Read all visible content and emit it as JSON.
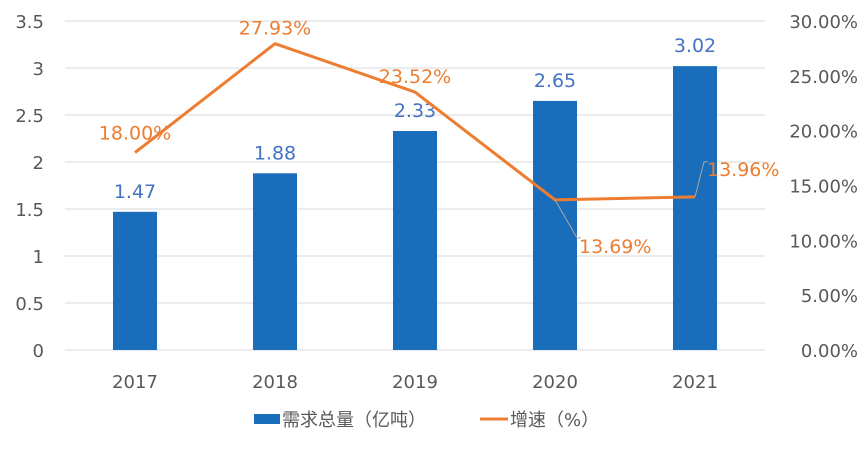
{
  "chart_data": {
    "type": "bar+line",
    "categories": [
      "2017",
      "2018",
      "2019",
      "2020",
      "2021"
    ],
    "series": [
      {
        "name": "需求总量（亿吨）",
        "type": "bar",
        "axis": "left",
        "values": [
          1.47,
          1.88,
          2.33,
          2.65,
          3.02
        ],
        "labels": [
          "1.47",
          "1.88",
          "2.33",
          "2.65",
          "3.02"
        ],
        "color": "#1a6dbb",
        "label_color": "#4472c4"
      },
      {
        "name": "增速（%）",
        "type": "line",
        "axis": "right",
        "values": [
          18.0,
          27.93,
          23.52,
          13.69,
          13.96
        ],
        "labels": [
          "18.00%",
          "27.93%",
          "23.52%",
          "13.69%",
          "13.96%"
        ],
        "color": "#ed7d31"
      }
    ],
    "left_axis": {
      "ylim": [
        0,
        3.5
      ],
      "ticks": [
        "0",
        "0.5",
        "1",
        "1.5",
        "2",
        "2.5",
        "3",
        "3.5"
      ]
    },
    "right_axis": {
      "ylim": [
        0,
        30
      ],
      "ticks": [
        "0.00%",
        "5.00%",
        "10.00%",
        "15.00%",
        "20.00%",
        "25.00%",
        "30.00%"
      ]
    },
    "grid": true,
    "legend": "bottom"
  }
}
